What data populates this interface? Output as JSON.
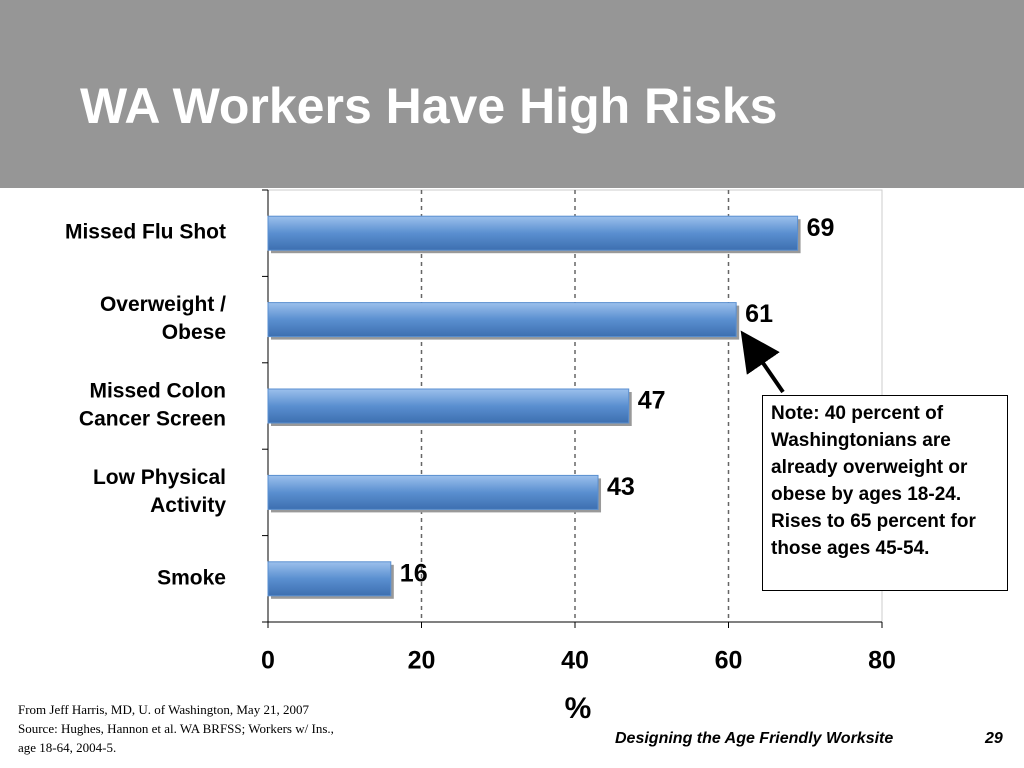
{
  "title": "WA Workers Have High Risks",
  "chart_data": {
    "type": "hbar",
    "categories": [
      [
        "Missed Flu Shot"
      ],
      [
        "Overweight /",
        "Obese"
      ],
      [
        "Missed Colon",
        "Cancer Screen"
      ],
      [
        "Low Physical",
        "Activity"
      ],
      [
        "Smoke"
      ]
    ],
    "values": [
      69,
      61,
      47,
      43,
      16
    ],
    "color": "#5a8fd0",
    "xlim": [
      0,
      80
    ],
    "xticks": [
      0,
      20,
      40,
      60,
      80
    ],
    "grid": true,
    "xlabel": "%",
    "annotation": "Note: 40 percent of Washingtonians are already overweight or obese by ages 18-24. Rises to 65 percent for those ages 45-54."
  },
  "source": [
    "From Jeff Harris, MD, U. of Washington,  May 21, 2007",
    "Source: Hughes, Hannon et al. WA BRFSS; Workers w/ Ins.,",
    "age 18-64, 2004-5."
  ],
  "footer": "Designing the Age Friendly Worksite",
  "page_number": "29"
}
